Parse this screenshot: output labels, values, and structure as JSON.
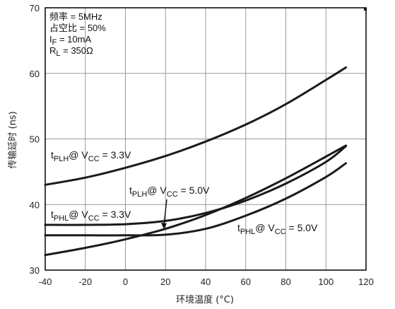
{
  "chart_data": {
    "type": "line",
    "xlabel": "环境温度 (°C)",
    "ylabel": "传输延时 (ns)",
    "xlim": [
      -40,
      120
    ],
    "ylim": [
      30,
      70
    ],
    "x_ticks": [
      -40,
      -20,
      0,
      20,
      40,
      60,
      80,
      100,
      120
    ],
    "y_ticks": [
      30,
      40,
      50,
      60,
      70
    ],
    "grid": true,
    "conditions": [
      {
        "pre": "频率 = 5MHz",
        "sub": "",
        "post": ""
      },
      {
        "pre": "占空比 = 50%",
        "sub": "",
        "post": ""
      },
      {
        "pre": "I",
        "sub": "F",
        "post": " = 10mA"
      },
      {
        "pre": "R",
        "sub": "L",
        "post": " = 350Ω"
      }
    ],
    "series": [
      {
        "name": "tPLH @ VCC = 3.3V",
        "label": {
          "t": "t",
          "tsub": "PLH",
          "mid": "@ V",
          "vsub": "CC",
          "end": " = 3.3V"
        },
        "x": [
          -40,
          -20,
          0,
          20,
          40,
          60,
          80,
          100,
          110
        ],
        "y": [
          43.0,
          44.1,
          45.6,
          47.4,
          49.6,
          52.2,
          55.3,
          59.0,
          60.9
        ]
      },
      {
        "name": "tPLH @ VCC = 5.0V",
        "label": {
          "t": "t",
          "tsub": "PLH",
          "mid": "@ V",
          "vsub": "CC",
          "end": " = 5.0V"
        },
        "x": [
          -40,
          -20,
          0,
          20,
          40,
          60,
          80,
          100,
          110
        ],
        "y": [
          32.3,
          33.4,
          34.7,
          36.3,
          38.4,
          41.0,
          44.0,
          47.3,
          49.0
        ]
      },
      {
        "name": "tPHL @ VCC = 3.3V",
        "label": {
          "t": "t",
          "tsub": "PHL",
          "mid": "@ V",
          "vsub": "CC",
          "end": " = 3.3V"
        },
        "x": [
          -40,
          -20,
          0,
          20,
          40,
          60,
          80,
          100,
          110
        ],
        "y": [
          36.9,
          36.9,
          37.0,
          37.5,
          38.7,
          40.6,
          43.2,
          46.5,
          48.9
        ]
      },
      {
        "name": "tPHL @ VCC = 5.0V",
        "label": {
          "t": "t",
          "tsub": "PHL",
          "mid": "@ V",
          "vsub": "CC",
          "end": " = 5.0V"
        },
        "x": [
          -40,
          -20,
          0,
          20,
          40,
          60,
          80,
          100,
          110
        ],
        "y": [
          35.3,
          35.3,
          35.3,
          35.4,
          36.3,
          38.3,
          40.9,
          44.2,
          46.3
        ]
      }
    ]
  }
}
